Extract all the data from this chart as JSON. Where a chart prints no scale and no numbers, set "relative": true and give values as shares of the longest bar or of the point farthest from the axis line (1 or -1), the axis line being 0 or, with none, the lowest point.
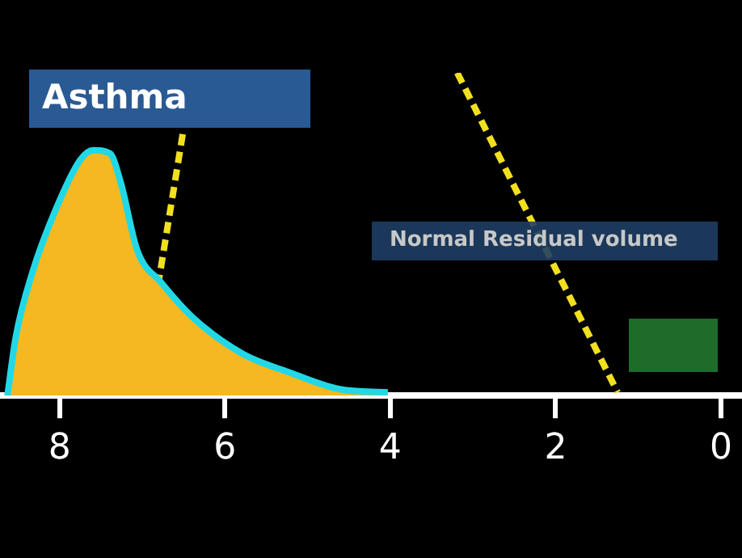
{
  "chart_data": {
    "type": "area",
    "title": "Asthma",
    "relative": true,
    "xlim": [
      8.72,
      -0.25
    ],
    "xticks": [
      8,
      6,
      4,
      2,
      0
    ],
    "series": [
      {
        "color": "#f5b820",
        "x": [
          8.63,
          8.53,
          8.33,
          8.04,
          7.75,
          7.59,
          7.39,
          7.26,
          7.06,
          6.77,
          6.38,
          5.79,
          5.2,
          4.61,
          4.03
        ],
        "values": [
          0,
          0.18,
          0.38,
          0.58,
          0.73,
          0.76,
          0.75,
          0.66,
          0.45,
          0.35,
          0.24,
          0.13,
          0.07,
          0.02,
          0.01
        ]
      },
      {
        "type": "line",
        "color": "#f0e020",
        "line_style": "dashed",
        "x": [
          6.81,
          6.51
        ],
        "values": [
          0.34,
          0.81
        ]
      },
      {
        "type": "line",
        "color": "#f0e020",
        "line_style": "dashed",
        "x": [
          3.19,
          1.25
        ],
        "values": [
          1.0,
          0.01
        ]
      }
    ],
    "annotations": [
      "Normal Residual volume"
    ],
    "grid": false,
    "legend": false
  }
}
